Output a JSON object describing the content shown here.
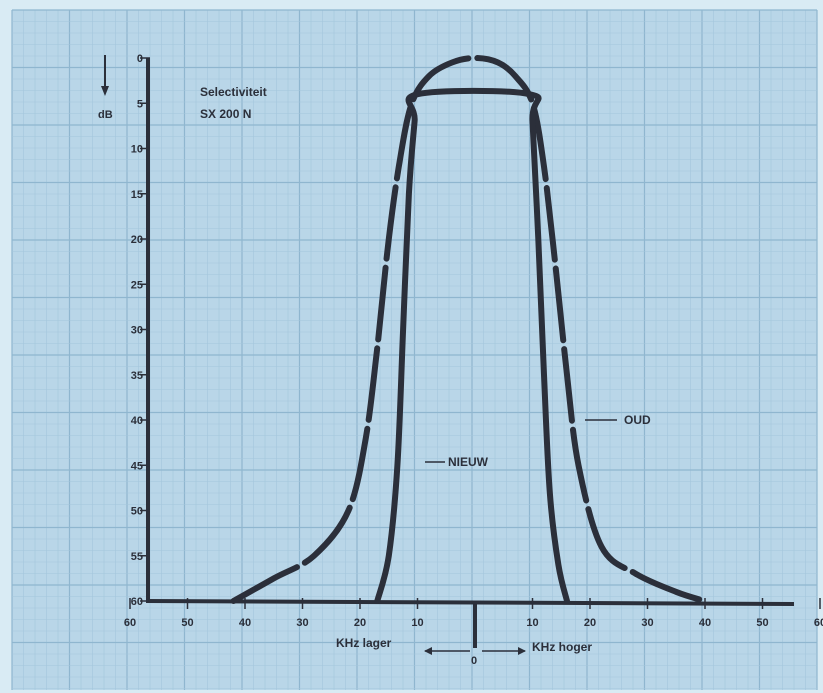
{
  "chart_data": {
    "type": "line",
    "title": "Selectiviteit",
    "subtitle": "SX 200 N",
    "ylabel": "dB",
    "y_ticks": [
      "0",
      "5",
      "10",
      "15",
      "20",
      "25",
      "30",
      "35",
      "40",
      "45",
      "50",
      "55",
      "60"
    ],
    "ylim": [
      0,
      60
    ],
    "y_direction": "down",
    "x_ticks_left": [
      "60",
      "50",
      "40",
      "30",
      "20",
      "10"
    ],
    "x_ticks_right": [
      "10",
      "20",
      "30",
      "40",
      "50",
      "60"
    ],
    "x_center_label": "0",
    "x_label_left": "KHz lager",
    "x_label_right": "KHz hoger",
    "xlim": [
      -60,
      60
    ],
    "grid": true,
    "series": [
      {
        "name": "OUD",
        "style": "dashed",
        "x": [
          -42,
          -35,
          -28,
          -22,
          -19,
          -17,
          -15,
          -13,
          -11,
          -8,
          -4,
          0,
          4,
          7,
          10,
          12,
          14,
          16,
          18,
          22,
          28,
          35,
          40
        ],
        "y": [
          60,
          57.5,
          55,
          50,
          42,
          32,
          20,
          11,
          5,
          2,
          0.5,
          0,
          0.5,
          2,
          5,
          12,
          23,
          35,
          45,
          54,
          57,
          59,
          60
        ]
      },
      {
        "name": "NIEUW",
        "style": "solid",
        "x": [
          -17,
          -15,
          -13.5,
          -12.5,
          -11.5,
          -10.5,
          -10,
          9.5,
          10,
          11,
          12,
          13,
          14.5,
          16
        ],
        "y": [
          60,
          55,
          45,
          30,
          15,
          7,
          4,
          4,
          7,
          20,
          35,
          48,
          56,
          60
        ]
      }
    ]
  },
  "annotations": {
    "oud": "OUD",
    "nieuw": "NIEUW"
  },
  "colors": {
    "background": "#b9d6e8",
    "grid_minor": "#a3c6dc",
    "grid_major": "#8fb6cf",
    "ink": "#2b2f3a",
    "frame": "#d9ebf4"
  }
}
